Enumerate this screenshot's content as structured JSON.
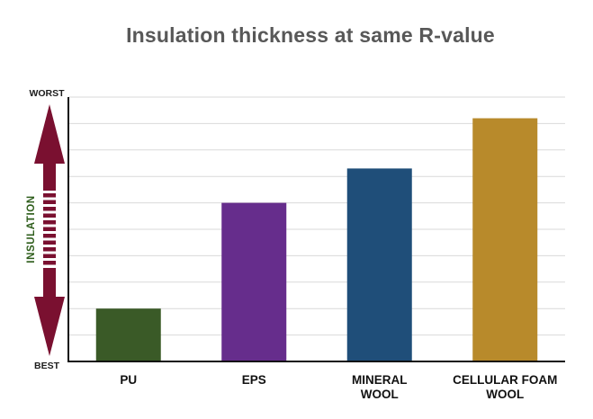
{
  "chart_data": {
    "type": "bar",
    "title": "Insulation thickness at same R-value",
    "ylabel": "INSULATION",
    "y_top_label": "WORST",
    "y_bottom_label": "BEST",
    "categories": [
      [
        "PU"
      ],
      [
        "EPS"
      ],
      [
        "MINERAL",
        "WOOL"
      ],
      [
        "CELLULAR FOAM",
        "WOOL"
      ]
    ],
    "values": [
      2,
      6,
      7.3,
      9.2
    ],
    "ylim": [
      0,
      10
    ],
    "grid": true,
    "legend": "none",
    "colors": [
      "#3a5a27",
      "#662d8c",
      "#1f4e79",
      "#b88a2b"
    ],
    "axis_color": "#111111",
    "arrow_color": "#7a1030",
    "ylabel_color": "#2f5e1c",
    "grid_color": "#d9d9d9"
  }
}
